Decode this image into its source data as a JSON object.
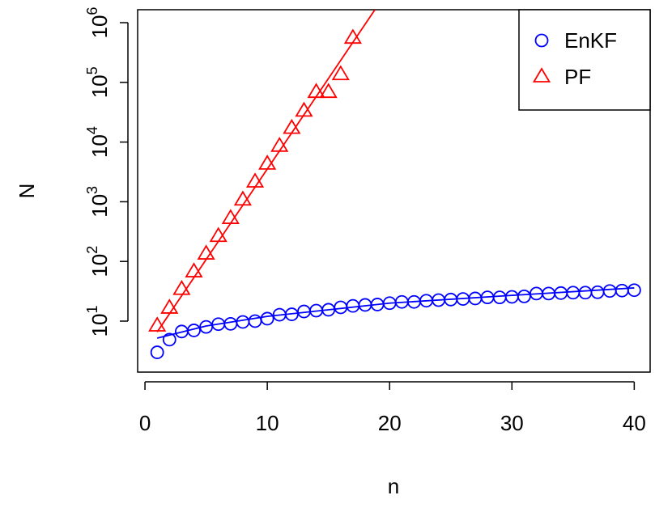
{
  "chart_data": {
    "type": "scatter",
    "x_label": "n",
    "y_label": "N",
    "log_y": true,
    "legend": "top-right",
    "xlim": [
      -0.6,
      41.3
    ],
    "ylim": [
      1.4,
      1650000
    ],
    "xticks": [
      0,
      10,
      20,
      30,
      40
    ],
    "yticks": [
      {
        "value": 10,
        "label": "10",
        "sup": "1"
      },
      {
        "value": 100,
        "label": "10",
        "sup": "2"
      },
      {
        "value": 1000,
        "label": "10",
        "sup": "3"
      },
      {
        "value": 10000,
        "label": "10",
        "sup": "4"
      },
      {
        "value": 100000,
        "label": "10",
        "sup": "5"
      },
      {
        "value": 1000000,
        "label": "10",
        "sup": "6"
      }
    ],
    "series": [
      {
        "name": "EnKF",
        "color": "#0000ff",
        "marker": "circle",
        "x": [
          1,
          2,
          3,
          4,
          5,
          6,
          7,
          8,
          9,
          10,
          11,
          12,
          13,
          14,
          15,
          16,
          17,
          18,
          19,
          20,
          21,
          22,
          23,
          24,
          25,
          26,
          27,
          28,
          29,
          30,
          31,
          32,
          33,
          34,
          35,
          36,
          37,
          38,
          39,
          40
        ],
        "values": [
          3,
          4.9,
          6.7,
          7,
          8,
          8.9,
          9,
          9.7,
          10,
          11,
          12.8,
          13,
          14.5,
          15,
          15.5,
          17,
          18,
          18.7,
          19,
          20,
          21,
          21,
          22,
          22.5,
          23,
          23.5,
          24,
          25,
          25,
          25.5,
          26,
          29,
          29,
          29.5,
          30,
          30,
          30.5,
          32,
          32.5,
          33
        ],
        "fit_x": [
          1,
          5,
          10,
          20,
          30,
          40
        ],
        "fit_values": [
          5.2,
          8.3,
          12,
          20,
          27,
          36
        ]
      },
      {
        "name": "PF",
        "color": "#ff0000",
        "marker": "triangle",
        "x": [
          1,
          2,
          3,
          4,
          5,
          6,
          7,
          8,
          9,
          10,
          11,
          12,
          13,
          14,
          15,
          16,
          17
        ],
        "values": [
          8.3,
          16.5,
          34,
          67,
          133,
          263,
          525,
          1070,
          2140,
          4270,
          8500,
          17000,
          33000,
          68000,
          68000,
          135000,
          550000
        ],
        "fit_x": [
          1,
          18.8
        ],
        "fit_values": [
          6.6,
          1650000
        ]
      }
    ]
  }
}
